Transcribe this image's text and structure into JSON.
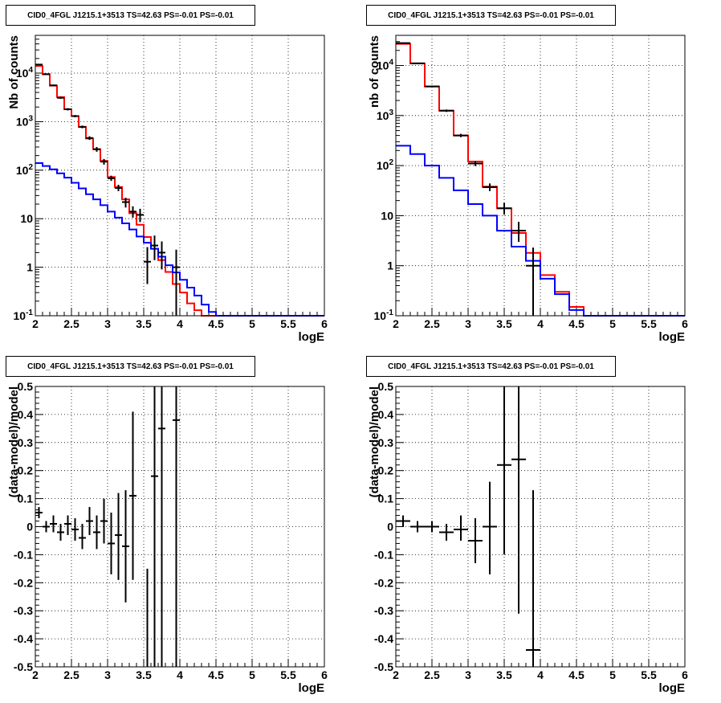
{
  "chart_data": [
    {
      "type": "histogram",
      "title": "CID0_4FGL J1215.1+3513 TS=42.63 PS=-0.01 PS=-0.01",
      "xlabel": "logE",
      "ylabel": "Nb of counts",
      "xlim": [
        2,
        6
      ],
      "ylim": [
        0.1,
        60000
      ],
      "yscale": "log",
      "grid": true,
      "x_ticks": [
        "2",
        "2.5",
        "3",
        "3.5",
        "4",
        "4.5",
        "5",
        "5.5",
        "6"
      ],
      "y_ticks": [
        "10^-1",
        "1",
        "10",
        "10^2",
        "10^3",
        "10^4"
      ],
      "bin_edges": [
        2.0,
        2.1,
        2.2,
        2.3,
        2.4,
        2.5,
        2.6,
        2.7,
        2.8,
        2.9,
        3.0,
        3.1,
        3.2,
        3.3,
        3.4,
        3.5,
        3.6,
        3.7,
        3.8,
        3.9,
        4.0,
        4.1,
        4.2,
        4.3,
        4.4,
        4.5,
        4.6,
        4.7,
        4.8,
        4.9,
        5.0,
        5.1,
        5.2,
        5.3,
        5.4,
        5.5,
        5.6,
        5.7,
        5.8,
        5.9,
        6.0
      ],
      "series": [
        {
          "color": "#ff0000",
          "kind": "step",
          "values": [
            14000,
            9500,
            5500,
            3200,
            1800,
            1300,
            780,
            450,
            270,
            155,
            72,
            45,
            25,
            13,
            7.5,
            4.2,
            2.4,
            1.4,
            0.8,
            0.45,
            0.3,
            0.18,
            0.13,
            0.1,
            0.1,
            0.1,
            0.1,
            0.1,
            0.1,
            0.1,
            0.1,
            0.1,
            0.1,
            0.1,
            0.1,
            0.1,
            0.1,
            0.1,
            0.1,
            0.1
          ]
        },
        {
          "color": "#0000ff",
          "kind": "step",
          "values": [
            140,
            122,
            104,
            86,
            70,
            55,
            42,
            32,
            25,
            19,
            14,
            10.5,
            8,
            6,
            4.3,
            3.2,
            2.4,
            1.65,
            1.1,
            0.78,
            0.55,
            0.38,
            0.26,
            0.17,
            0.12,
            0.1,
            0.1,
            0.1,
            0.1,
            0.1,
            0.1,
            0.1,
            0.1,
            0.1,
            0.1,
            0.1,
            0.1,
            0.1,
            0.1,
            0.1
          ]
        },
        {
          "color": "#000000",
          "kind": "errorbars",
          "points": [
            {
              "x": 2.05,
              "y": 15000,
              "lo": 14600,
              "hi": 15400
            },
            {
              "x": 2.15,
              "y": 9500,
              "lo": 9200,
              "hi": 9800
            },
            {
              "x": 2.25,
              "y": 5600,
              "lo": 5400,
              "hi": 5800
            },
            {
              "x": 2.35,
              "y": 3100,
              "lo": 2950,
              "hi": 3250
            },
            {
              "x": 2.45,
              "y": 1800,
              "lo": 1700,
              "hi": 1900
            },
            {
              "x": 2.55,
              "y": 1300,
              "lo": 1230,
              "hi": 1370
            },
            {
              "x": 2.65,
              "y": 780,
              "lo": 730,
              "hi": 830
            },
            {
              "x": 2.75,
              "y": 460,
              "lo": 420,
              "hi": 500
            },
            {
              "x": 2.85,
              "y": 270,
              "lo": 240,
              "hi": 300
            },
            {
              "x": 2.95,
              "y": 150,
              "lo": 130,
              "hi": 170
            },
            {
              "x": 3.05,
              "y": 68,
              "lo": 60,
              "hi": 77
            },
            {
              "x": 3.15,
              "y": 43,
              "lo": 37,
              "hi": 50
            },
            {
              "x": 3.25,
              "y": 22,
              "lo": 17,
              "hi": 27
            },
            {
              "x": 3.35,
              "y": 14,
              "lo": 10.5,
              "hi": 18
            },
            {
              "x": 3.45,
              "y": 12,
              "lo": 8.5,
              "hi": 16
            },
            {
              "x": 3.55,
              "y": 1.3,
              "lo": 0.45,
              "hi": 2.6
            },
            {
              "x": 3.65,
              "y": 2.8,
              "lo": 1.4,
              "hi": 4.5
            },
            {
              "x": 3.75,
              "y": 2.0,
              "lo": 0.9,
              "hi": 3.4
            },
            {
              "x": 3.95,
              "y": 1.0,
              "lo": 0.1,
              "hi": 2.3
            }
          ]
        }
      ]
    },
    {
      "type": "histogram",
      "title": "CID0_4FGL J1215.1+3513 TS=42.63 PS=-0.01 PS=-0.01",
      "xlabel": "logE",
      "ylabel": "nb of counts",
      "xlim": [
        2,
        6
      ],
      "ylim": [
        0.1,
        40000
      ],
      "yscale": "log",
      "grid": true,
      "x_ticks": [
        "2",
        "2.5",
        "3",
        "3.5",
        "4",
        "4.5",
        "5",
        "5.5",
        "6"
      ],
      "y_ticks": [
        "10^-1",
        "1",
        "10",
        "10^2",
        "10^3",
        "10^4"
      ],
      "bin_edges": [
        2.0,
        2.2,
        2.4,
        2.6,
        2.8,
        3.0,
        3.2,
        3.4,
        3.6,
        3.8,
        4.0,
        4.2,
        4.4,
        4.6,
        4.8,
        5.0,
        5.2,
        5.4,
        5.6,
        5.8,
        6.0
      ],
      "series": [
        {
          "color": "#ff0000",
          "kind": "step",
          "values": [
            27000,
            11000,
            3800,
            1250,
            400,
            120,
            38,
            14,
            4.5,
            1.8,
            0.65,
            0.3,
            0.15,
            0.1,
            0.1,
            0.1,
            0.1,
            0.1,
            0.1,
            0.1
          ]
        },
        {
          "color": "#0000ff",
          "kind": "step",
          "values": [
            250,
            170,
            100,
            57,
            32,
            17,
            10,
            5,
            2.4,
            1.25,
            0.55,
            0.27,
            0.13,
            0.1,
            0.1,
            0.1,
            0.1,
            0.1,
            0.1,
            0.1
          ]
        },
        {
          "color": "#000000",
          "kind": "errorbars",
          "points": [
            {
              "x": 2.1,
              "y": 28000,
              "lo": 27500,
              "hi": 28500
            },
            {
              "x": 2.3,
              "y": 11000,
              "lo": 10700,
              "hi": 11300
            },
            {
              "x": 2.5,
              "y": 3800,
              "lo": 3650,
              "hi": 3950
            },
            {
              "x": 2.7,
              "y": 1250,
              "lo": 1180,
              "hi": 1320
            },
            {
              "x": 2.9,
              "y": 400,
              "lo": 370,
              "hi": 430
            },
            {
              "x": 3.1,
              "y": 110,
              "lo": 98,
              "hi": 122
            },
            {
              "x": 3.3,
              "y": 37,
              "lo": 31,
              "hi": 44
            },
            {
              "x": 3.5,
              "y": 14,
              "lo": 10.5,
              "hi": 18
            },
            {
              "x": 3.7,
              "y": 5,
              "lo": 3,
              "hi": 7.5
            },
            {
              "x": 3.9,
              "y": 1.0,
              "lo": 0.1,
              "hi": 2.3
            }
          ]
        }
      ]
    },
    {
      "type": "scatter",
      "title": "CID0_4FGL J1215.1+3513 TS=42.63 PS=-0.01 PS=-0.01",
      "xlabel": "logE",
      "ylabel": "(data-model)/model",
      "xlim": [
        2,
        6
      ],
      "ylim": [
        -0.5,
        0.5
      ],
      "grid": true,
      "x_ticks": [
        "2",
        "2.5",
        "3",
        "3.5",
        "4",
        "4.5",
        "5",
        "5.5",
        "6"
      ],
      "y_ticks": [
        "-0.5",
        "-0.4",
        "-0.3",
        "-0.2",
        "-0.1",
        "0",
        "0.1",
        "0.2",
        "0.3",
        "0.4",
        "0.5"
      ],
      "xerr": 0.05,
      "points": [
        {
          "x": 2.05,
          "y": 0.05,
          "lo": 0.03,
          "hi": 0.07
        },
        {
          "x": 2.15,
          "y": 0.0,
          "lo": -0.02,
          "hi": 0.02
        },
        {
          "x": 2.25,
          "y": 0.01,
          "lo": -0.02,
          "hi": 0.04
        },
        {
          "x": 2.35,
          "y": -0.02,
          "lo": -0.05,
          "hi": 0.01
        },
        {
          "x": 2.45,
          "y": 0.01,
          "lo": -0.03,
          "hi": 0.04
        },
        {
          "x": 2.55,
          "y": -0.01,
          "lo": -0.05,
          "hi": 0.03
        },
        {
          "x": 2.65,
          "y": -0.04,
          "lo": -0.08,
          "hi": 0.01
        },
        {
          "x": 2.75,
          "y": 0.02,
          "lo": -0.03,
          "hi": 0.07
        },
        {
          "x": 2.85,
          "y": -0.02,
          "lo": -0.08,
          "hi": 0.04
        },
        {
          "x": 2.95,
          "y": 0.02,
          "lo": -0.06,
          "hi": 0.1
        },
        {
          "x": 3.05,
          "y": -0.06,
          "lo": -0.17,
          "hi": 0.05
        },
        {
          "x": 3.15,
          "y": -0.03,
          "lo": -0.19,
          "hi": 0.12
        },
        {
          "x": 3.25,
          "y": -0.07,
          "lo": -0.27,
          "hi": 0.13
        },
        {
          "x": 3.35,
          "y": 0.11,
          "lo": -0.19,
          "hi": 0.41
        },
        {
          "x": 3.55,
          "y": -0.5,
          "lo": -0.5,
          "hi": -0.15
        },
        {
          "x": 3.65,
          "y": 0.18,
          "lo": -0.5,
          "hi": 0.5
        },
        {
          "x": 3.75,
          "y": 0.35,
          "lo": -0.5,
          "hi": 0.5
        },
        {
          "x": 3.95,
          "y": 0.38,
          "lo": -0.5,
          "hi": 0.5
        }
      ]
    },
    {
      "type": "scatter",
      "title": "CID0_4FGL J1215.1+3513 TS=42.63 PS=-0.01 PS=-0.01",
      "xlabel": "logE",
      "ylabel": "(data-model)/model",
      "xlim": [
        2,
        6
      ],
      "ylim": [
        -0.5,
        0.5
      ],
      "grid": true,
      "x_ticks": [
        "2",
        "2.5",
        "3",
        "3.5",
        "4",
        "4.5",
        "5",
        "5.5",
        "6"
      ],
      "y_ticks": [
        "-0.5",
        "-0.4",
        "-0.3",
        "-0.2",
        "-0.1",
        "0",
        "0.1",
        "0.2",
        "0.3",
        "0.4",
        "0.5"
      ],
      "xerr": 0.1,
      "points": [
        {
          "x": 2.1,
          "y": 0.02,
          "lo": 0.0,
          "hi": 0.04
        },
        {
          "x": 2.3,
          "y": 0.0,
          "lo": -0.02,
          "hi": 0.02
        },
        {
          "x": 2.5,
          "y": 0.0,
          "lo": -0.02,
          "hi": 0.02
        },
        {
          "x": 2.7,
          "y": -0.02,
          "lo": -0.05,
          "hi": 0.01
        },
        {
          "x": 2.9,
          "y": -0.01,
          "lo": -0.05,
          "hi": 0.04
        },
        {
          "x": 3.1,
          "y": -0.05,
          "lo": -0.13,
          "hi": 0.03
        },
        {
          "x": 3.3,
          "y": 0.0,
          "lo": -0.17,
          "hi": 0.16
        },
        {
          "x": 3.5,
          "y": 0.22,
          "lo": -0.1,
          "hi": 0.5
        },
        {
          "x": 3.7,
          "y": 0.24,
          "lo": -0.31,
          "hi": 0.5
        },
        {
          "x": 3.9,
          "y": -0.44,
          "lo": -0.5,
          "hi": 0.13
        }
      ]
    }
  ]
}
